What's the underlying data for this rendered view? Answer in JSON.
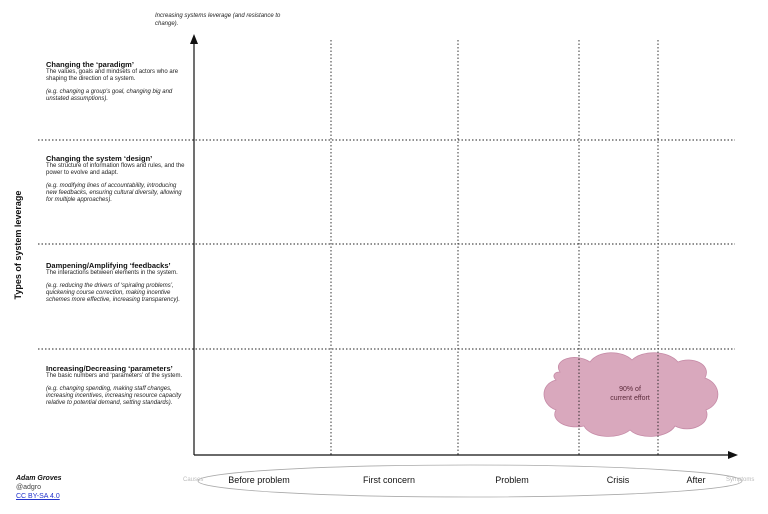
{
  "axis_top_label": "Increasing systems leverage (and resistance to change).",
  "y_axis_title": "Types of system leverage",
  "rows": [
    {
      "title": "Changing the ‘paradigm’",
      "description": "The values, goals and mindsets of actors who are shaping the direction of a system.",
      "example": "(e.g. changing a group's goal, changing big and unstated assumptions)."
    },
    {
      "title": "Changing the system ‘design’",
      "description": "The structure of information flows and rules, and the power to evolve and adapt.",
      "example": "(e.g. modifying lines of accountability, introducing new feedbacks, ensuring cultural diversity, allowing for multiple approaches)."
    },
    {
      "title": "Dampening/Amplifying ‘feedbacks’",
      "description": "The interactions between elements in the system.",
      "example": "(e.g. reducing the drivers of ‘spiraling problems’, quickening course correction, making incentive schemes more effective, increasing transparency)."
    },
    {
      "title": "Increasing/Decreasing ‘parameters’",
      "description": "The basic numbers and ‘parameters’ of the system.",
      "example": "(e.g. changing spending, making staff changes, increasing incentives, increasing resource capacity relative to potential demand, setting standards)."
    }
  ],
  "x_axis": {
    "start_label": "Causes",
    "end_label": "Symptoms",
    "stages": [
      "Before problem",
      "First concern",
      "Problem",
      "Crisis",
      "After"
    ]
  },
  "cloud": {
    "text_line1": "90% of",
    "text_line2": "current effort",
    "fill_color": "#d9a8bd"
  },
  "credit": {
    "name": "Adam Groves",
    "handle": "@adgro",
    "license": "CC BY-SA 4.0"
  }
}
